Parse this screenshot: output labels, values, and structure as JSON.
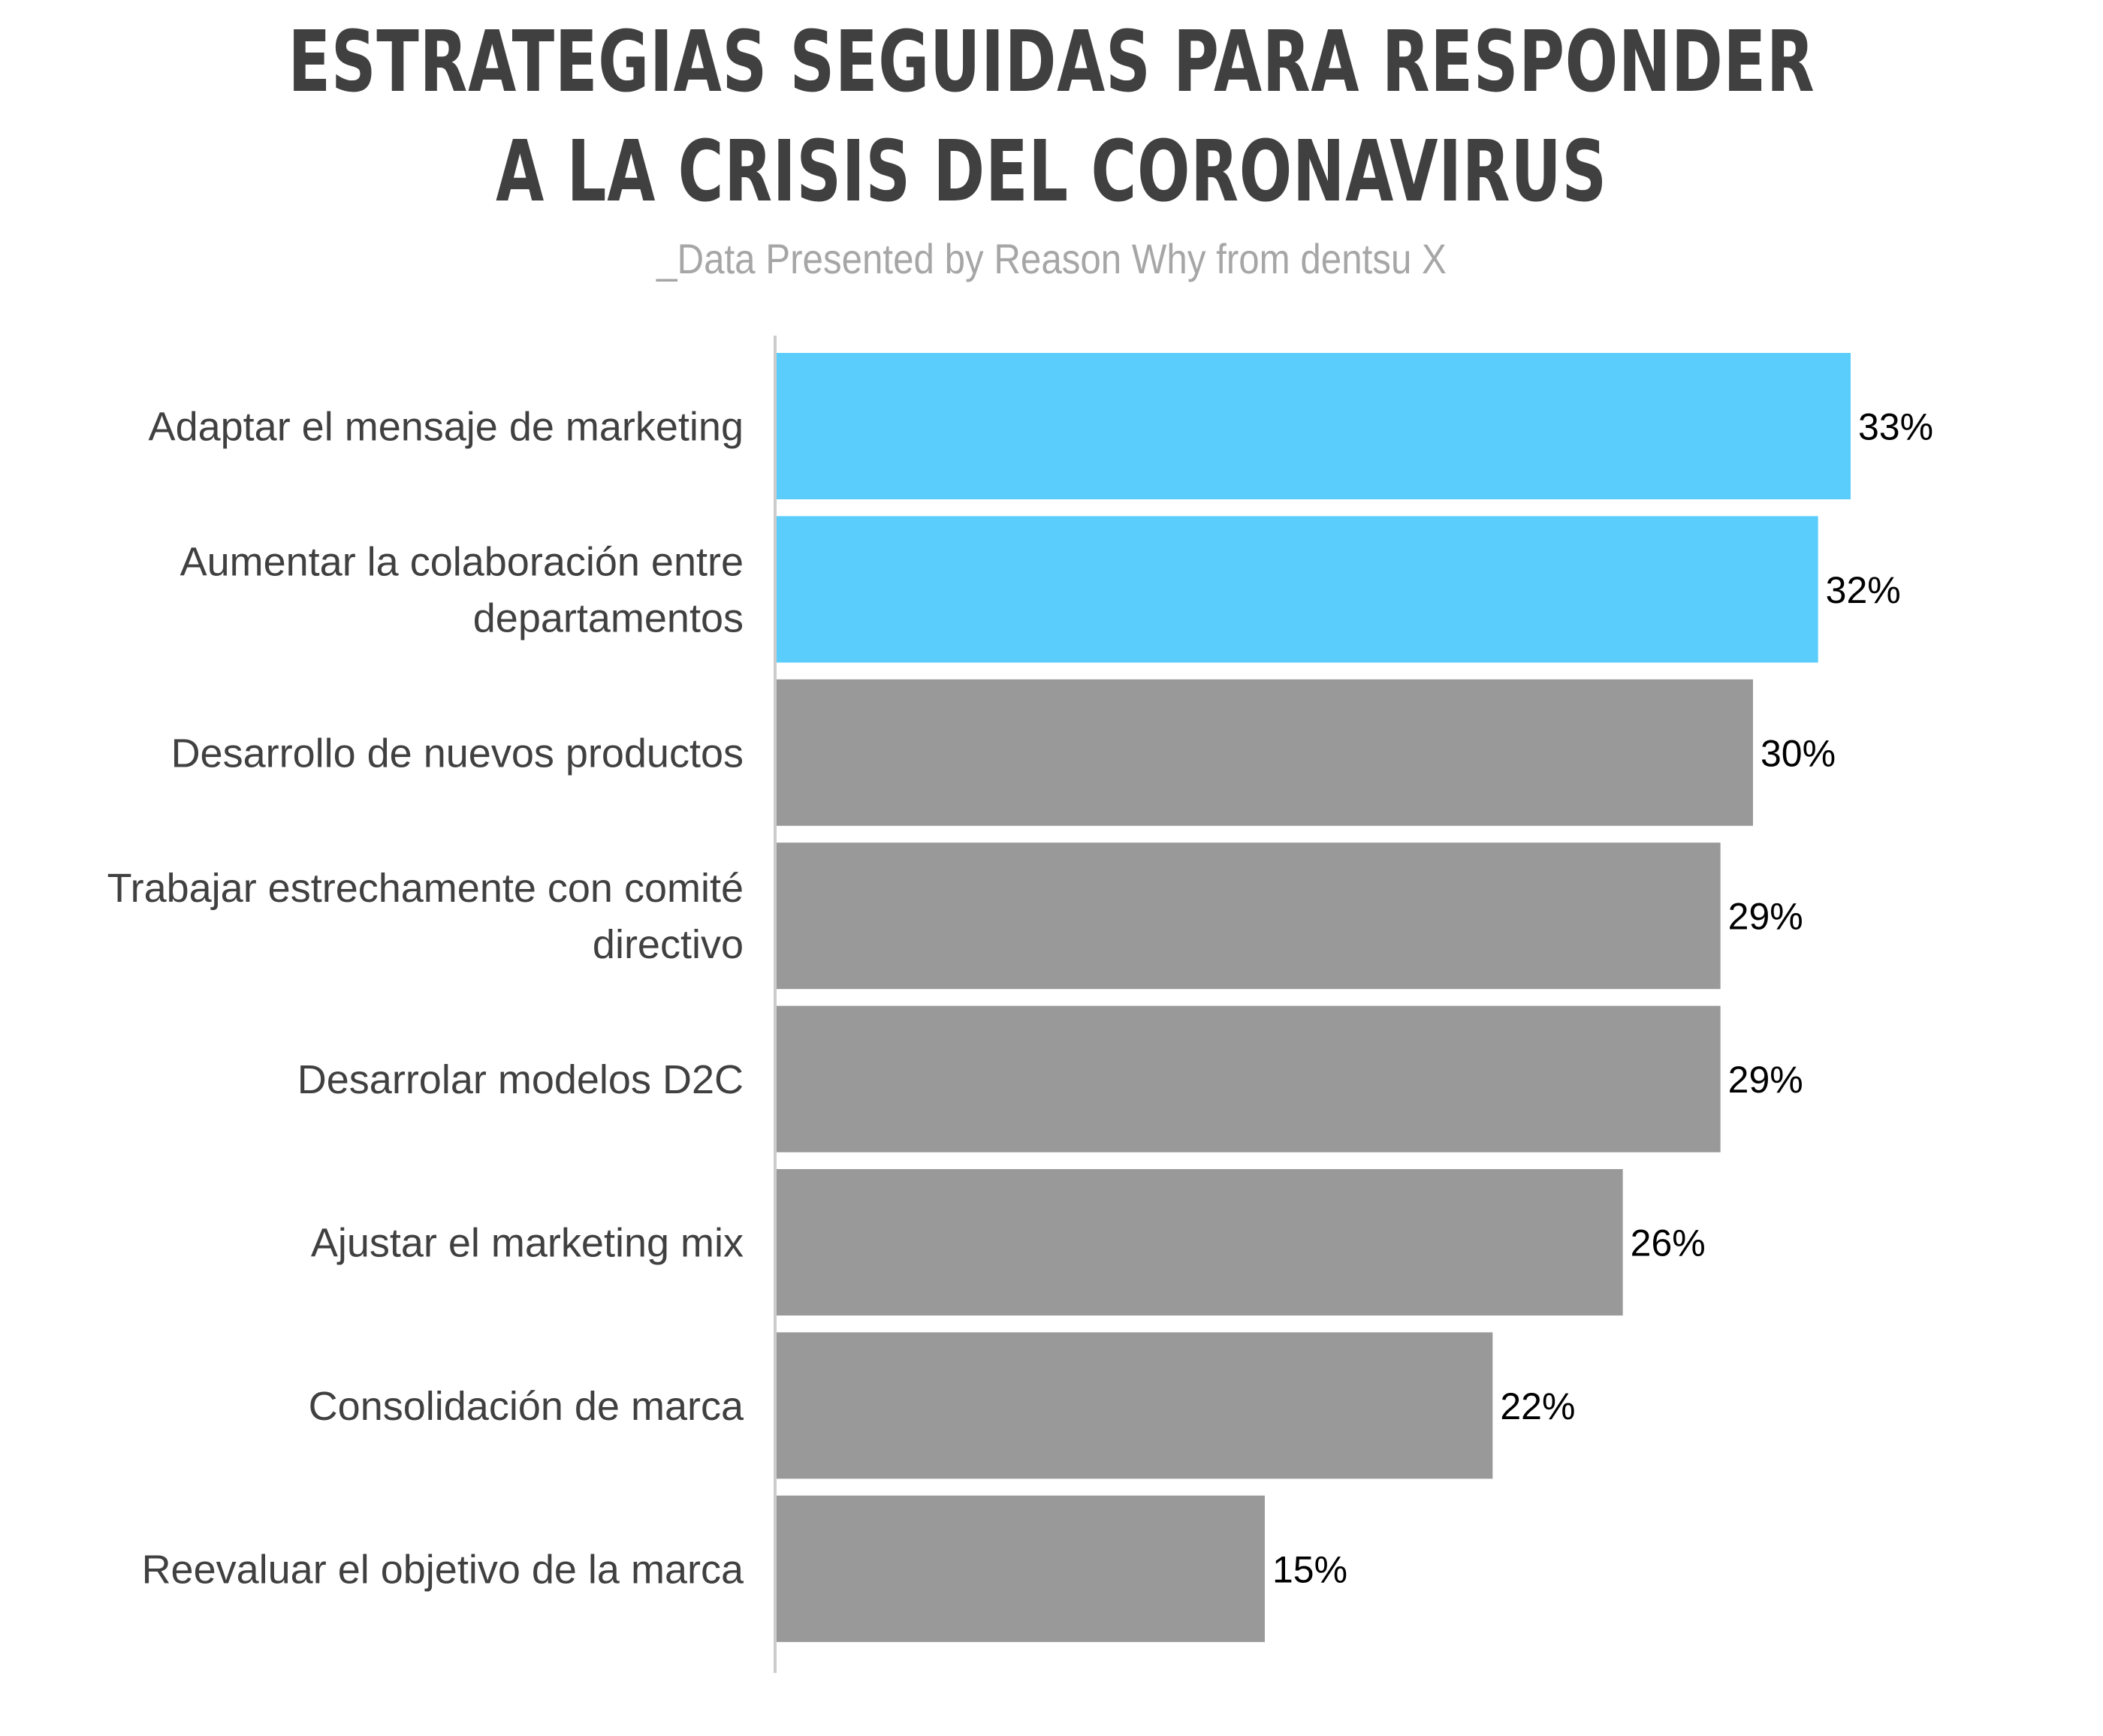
{
  "title_lines": [
    "ESTRATEGIAS SEGUIDAS PARA RESPONDER",
    "A LA CRISIS DEL CORONAVIRUS"
  ],
  "subtitle": "_Data Presented by Reason Why from dentsu X",
  "colors": {
    "highlight": "#5bcdfc",
    "default": "#999999",
    "axis": "#cccccc",
    "title": "#404040",
    "subtitle": "#a6a6a6"
  },
  "chart_data": {
    "type": "bar",
    "orientation": "horizontal",
    "categories": [
      [
        "Adaptar el mensaje de marketing"
      ],
      [
        "Aumentar la colaboración entre",
        "departamentos"
      ],
      [
        "Desarrollo de nuevos productos"
      ],
      [
        "Trabajar estrechamente con comité",
        "directivo"
      ],
      [
        "Desarrolar modelos D2C"
      ],
      [
        "Ajustar el marketing mix"
      ],
      [
        "Consolidación de marca"
      ],
      [
        "Reevaluar el objetivo de la marca"
      ]
    ],
    "values": [
      33,
      32,
      30,
      29,
      29,
      26,
      22,
      15
    ],
    "value_labels": [
      "33%",
      "32%",
      "30%",
      "29%",
      "29%",
      "26%",
      "22%",
      "15%"
    ],
    "highlighted": [
      true,
      true,
      false,
      false,
      false,
      false,
      false,
      false
    ],
    "xlim": [
      0,
      33
    ],
    "grid": false,
    "legend": "none"
  }
}
